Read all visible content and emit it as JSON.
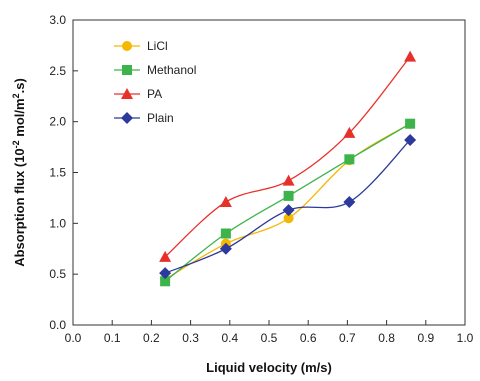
{
  "chart_data": {
    "type": "line",
    "title": "",
    "xlabel": "Liquid velocity (m/s)",
    "ylabel": "Absorption flux (10",
    "ylabel_sup1": "-2",
    "ylabel_mid": " mol/m",
    "ylabel_sup2": "2",
    "ylabel_end": ".s)",
    "xlim": [
      0.0,
      1.0
    ],
    "ylim": [
      0.0,
      3.0
    ],
    "xticks": [
      "0.0",
      "0.1",
      "0.2",
      "0.3",
      "0.4",
      "0.5",
      "0.6",
      "0.7",
      "0.8",
      "0.9",
      "1.0"
    ],
    "yticks": [
      "0.0",
      "0.5",
      "1.0",
      "1.5",
      "2.0",
      "2.5",
      "3.0"
    ],
    "grid": false,
    "legend_position": "top-left",
    "series": [
      {
        "name": "LiCl",
        "color": "#f5b800",
        "marker": "circle",
        "x": [
          0.235,
          0.39,
          0.55,
          0.705,
          0.86
        ],
        "y": [
          0.45,
          0.8,
          1.05,
          1.62,
          1.98
        ]
      },
      {
        "name": "Methanol",
        "color": "#3cb44b",
        "marker": "square",
        "x": [
          0.235,
          0.39,
          0.55,
          0.705,
          0.86
        ],
        "y": [
          0.43,
          0.9,
          1.27,
          1.63,
          1.98
        ]
      },
      {
        "name": "PA",
        "color": "#e8302a",
        "marker": "triangle",
        "x": [
          0.235,
          0.39,
          0.55,
          0.705,
          0.86
        ],
        "y": [
          0.67,
          1.21,
          1.42,
          1.89,
          2.64
        ]
      },
      {
        "name": "Plain",
        "color": "#2b3a9c",
        "marker": "diamond",
        "x": [
          0.235,
          0.39,
          0.55,
          0.705,
          0.86
        ],
        "y": [
          0.51,
          0.75,
          1.13,
          1.21,
          1.82
        ]
      }
    ]
  }
}
